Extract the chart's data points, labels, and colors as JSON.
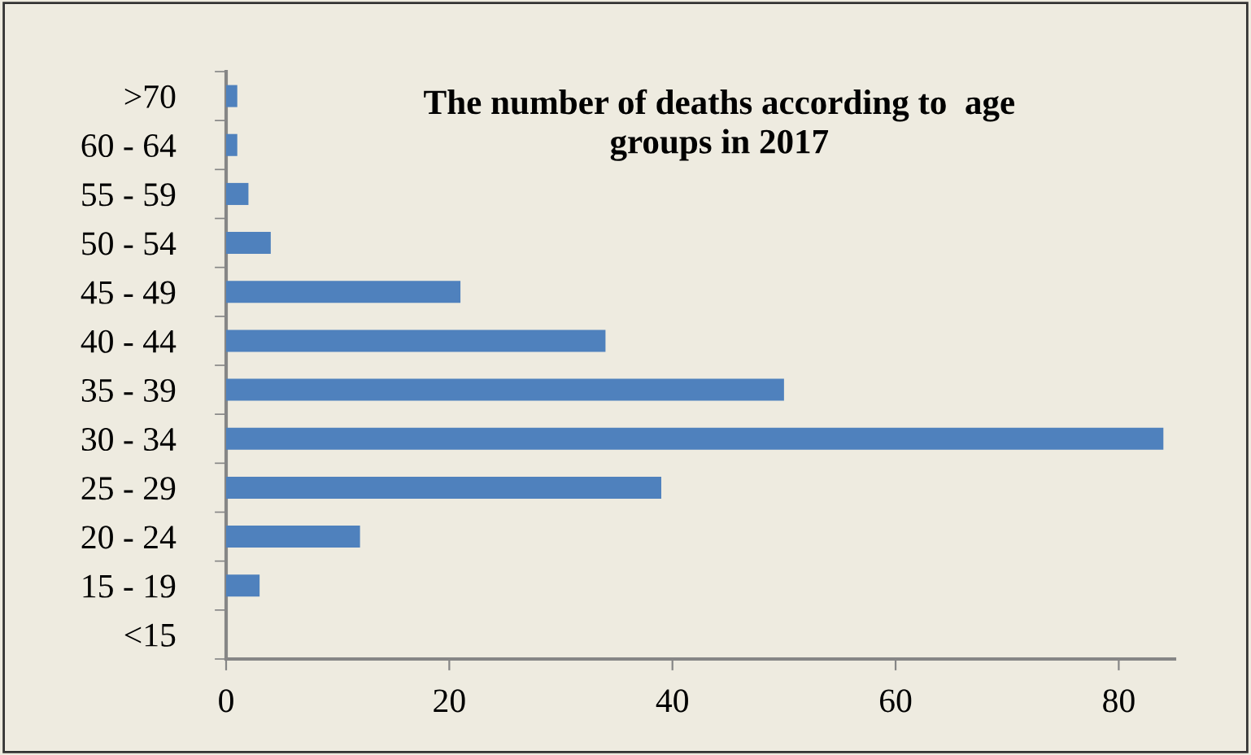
{
  "chart_data": {
    "type": "bar",
    "orientation": "horizontal",
    "title": "The number of deaths according to  age\ngroups in 2017",
    "categories": [
      ">70",
      "60 - 64",
      "55 - 59",
      "50 - 54",
      "45 - 49",
      "40 - 44",
      "35 - 39",
      "30 - 34",
      "25 - 29",
      "20 - 24",
      "15 - 19",
      "<15"
    ],
    "values": [
      1,
      1,
      2,
      4,
      21,
      34,
      50,
      84,
      39,
      12,
      3,
      0
    ],
    "color": "#4f81bd",
    "xlim": [
      0,
      85
    ],
    "xticks": [
      0,
      20,
      40,
      60,
      80
    ],
    "grid": false,
    "legend": false
  }
}
